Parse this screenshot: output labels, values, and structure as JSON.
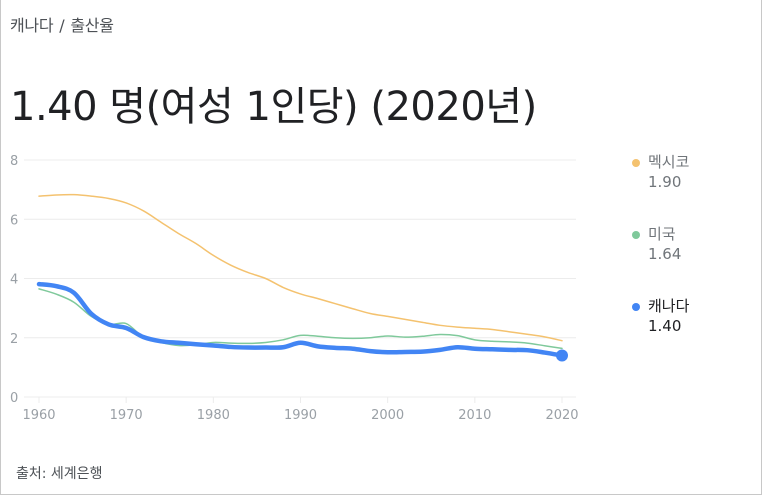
{
  "breadcrumb": {
    "country": "캐나다",
    "separator": "/",
    "topic": "출산율"
  },
  "headline": "1.40 명(여성 1인당) (2020년)",
  "legend": [
    {
      "name": "멕시코",
      "value": "1.90",
      "color": "#f4c26f"
    },
    {
      "name": "미국",
      "value": "1.64",
      "color": "#7fc99b"
    },
    {
      "name": "캐나다",
      "value": "1.40",
      "color": "#4285f4"
    }
  ],
  "source": "출처: 세계은행",
  "chart_data": {
    "type": "line",
    "title": "캐나다 / 출산율",
    "subtitle": "1.40 명(여성 1인당) (2020년)",
    "xlabel": "",
    "ylabel": "",
    "xlim": [
      1960,
      2020
    ],
    "ylim": [
      0,
      8
    ],
    "x_ticks": [
      "1960",
      "1970",
      "1980",
      "1990",
      "2000",
      "2010",
      "2020"
    ],
    "y_ticks": [
      "0",
      "2",
      "4",
      "6",
      "8"
    ],
    "grid": true,
    "legend_position": "right",
    "x": [
      1960,
      1962,
      1964,
      1966,
      1968,
      1970,
      1972,
      1974,
      1976,
      1978,
      1980,
      1982,
      1984,
      1986,
      1988,
      1990,
      1992,
      1994,
      1996,
      1998,
      2000,
      2002,
      2004,
      2006,
      2008,
      2010,
      2012,
      2014,
      2016,
      2018,
      2020
    ],
    "series": [
      {
        "name": "멕시코",
        "color": "#f4c26f",
        "values": [
          6.78,
          6.82,
          6.83,
          6.78,
          6.7,
          6.55,
          6.28,
          5.9,
          5.52,
          5.18,
          4.78,
          4.45,
          4.2,
          4.0,
          3.7,
          3.48,
          3.32,
          3.15,
          2.98,
          2.82,
          2.72,
          2.62,
          2.52,
          2.42,
          2.36,
          2.32,
          2.28,
          2.2,
          2.12,
          2.03,
          1.9
        ]
      },
      {
        "name": "미국",
        "color": "#7fc99b",
        "values": [
          3.65,
          3.47,
          3.2,
          2.72,
          2.45,
          2.48,
          2.01,
          1.84,
          1.74,
          1.76,
          1.84,
          1.82,
          1.81,
          1.84,
          1.93,
          2.08,
          2.05,
          2.0,
          1.98,
          2.0,
          2.06,
          2.02,
          2.05,
          2.11,
          2.07,
          1.93,
          1.88,
          1.86,
          1.82,
          1.73,
          1.64
        ]
      },
      {
        "name": "캐나다",
        "color": "#4285f4",
        "values": [
          3.81,
          3.74,
          3.52,
          2.81,
          2.45,
          2.33,
          2.02,
          1.88,
          1.83,
          1.78,
          1.74,
          1.69,
          1.67,
          1.67,
          1.68,
          1.83,
          1.71,
          1.66,
          1.63,
          1.55,
          1.51,
          1.52,
          1.53,
          1.59,
          1.68,
          1.63,
          1.61,
          1.59,
          1.58,
          1.5,
          1.4
        ]
      }
    ]
  }
}
